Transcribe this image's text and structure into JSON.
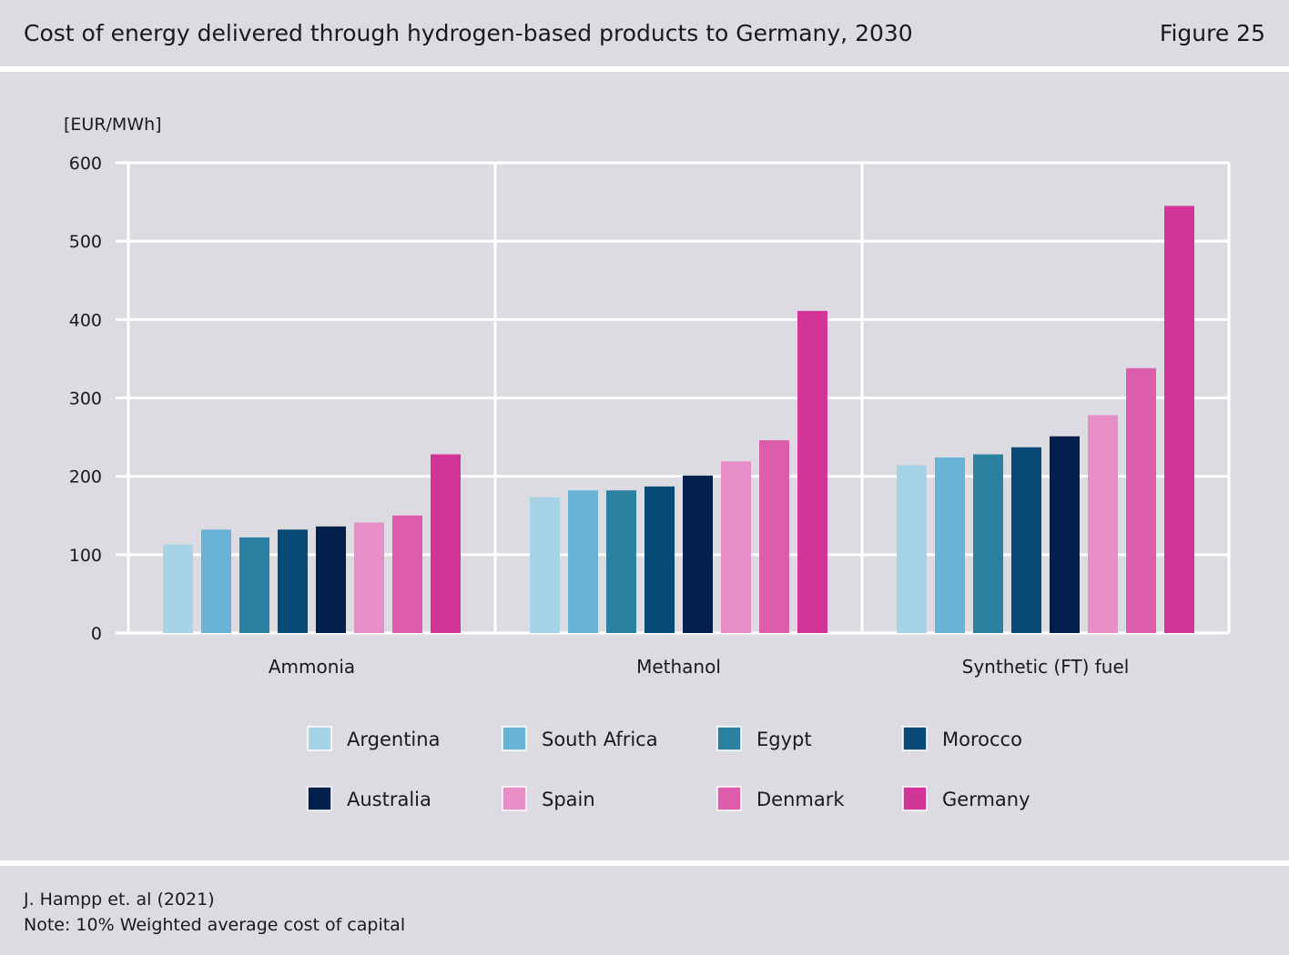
{
  "title": "Cost of energy delivered through hydrogen-based products to Germany, 2030",
  "figure_label": "Figure 25",
  "source": "J. Hampp et. al (2021)",
  "note": "Note: 10% Weighted average cost of capital",
  "colors": {
    "Argentina": "#a6d3e6",
    "South Africa": "#68b2d6",
    "Egypt": "#2b82a0",
    "Morocco": "#064a75",
    "Australia": "#03204c",
    "Spain": "#e88ec6",
    "Denmark": "#dc5eab",
    "Germany": "#d13597"
  },
  "chart_data": {
    "type": "bar",
    "title": "",
    "xlabel": "",
    "ylabel": "[EUR/MWh]",
    "ylim": [
      0,
      600
    ],
    "yticks": [
      0,
      100,
      200,
      300,
      400,
      500,
      600
    ],
    "grid": true,
    "legend_position": "bottom",
    "categories": [
      "Ammonia",
      "Methanol",
      "Synthetic (FT) fuel"
    ],
    "series": [
      {
        "name": "Argentina",
        "values": [
          113,
          173,
          214
        ]
      },
      {
        "name": "South Africa",
        "values": [
          132,
          182,
          224
        ]
      },
      {
        "name": "Egypt",
        "values": [
          122,
          182,
          228
        ]
      },
      {
        "name": "Morocco",
        "values": [
          132,
          187,
          237
        ]
      },
      {
        "name": "Australia",
        "values": [
          136,
          201,
          251
        ]
      },
      {
        "name": "Spain",
        "values": [
          141,
          219,
          278
        ]
      },
      {
        "name": "Denmark",
        "values": [
          150,
          246,
          338
        ]
      },
      {
        "name": "Germany",
        "values": [
          228,
          411,
          545
        ]
      }
    ]
  }
}
